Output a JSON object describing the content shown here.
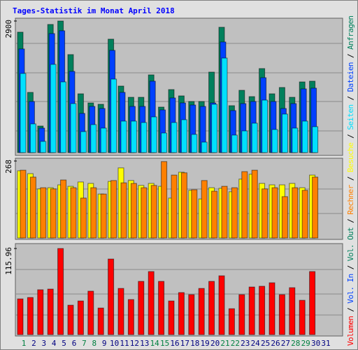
{
  "chart_data": [
    {
      "type": "bar",
      "title": "Tages-Statistik im Monat April 2018",
      "ylim": [
        0,
        2900
      ],
      "yticks": [
        2900
      ],
      "series": [
        {
          "name": "Anfragen",
          "color": "#00805c",
          "values": [
            2654,
            1327,
            586,
            2824,
            2900,
            2160,
            1296,
            1095,
            1065,
            2500,
            1466,
            1219,
            1219,
            1713,
            1003,
            1389,
            1250,
            1126,
            1126,
            1774,
            2762,
            1034,
            1373,
            1234,
            1852,
            1296,
            1435,
            1219,
            1558,
            1574,
            null
          ]
        },
        {
          "name": "Dateien",
          "color": "#0040ff",
          "values": [
            2284,
            1126,
            540,
            2623,
            2685,
            1790,
            864,
            1018,
            972,
            2253,
            1327,
            1018,
            1018,
            1574,
            941,
            1204,
            1095,
            1049,
            1018,
            1095,
            2438,
            926,
            1080,
            1126,
            1651,
            1126,
            972,
            1080,
            1404,
            1420,
            null
          ]
        },
        {
          "name": "Seiten",
          "color": "#00e0ff",
          "values": [
            1744,
            633,
            247,
            1944,
            1558,
            1080,
            463,
            617,
            540,
            1620,
            694,
            694,
            663,
            787,
            432,
            663,
            725,
            401,
            231,
            1065,
            2083,
            386,
            478,
            648,
            1157,
            509,
            849,
            540,
            694,
            571,
            null
          ]
        }
      ]
    },
    {
      "type": "bar",
      "ylim": [
        0,
        268
      ],
      "yticks": [
        268
      ],
      "series": [
        {
          "name": "Besuche",
          "color": "#ffff00",
          "values": [
            234,
            224,
            171,
            175,
            185,
            180,
            195,
            190,
            153,
            197,
            244,
            200,
            183,
            190,
            180,
            139,
            229,
            166,
            136,
            175,
            173,
            161,
            205,
            222,
            190,
            185,
            185,
            190,
            175,
            219,
            null
          ]
        },
        {
          "name": "Rechner",
          "color": "#ff8000",
          "values": [
            236,
            212,
            175,
            171,
            202,
            175,
            139,
            175,
            153,
            200,
            192,
            190,
            175,
            183,
            266,
            219,
            227,
            168,
            200,
            163,
            180,
            175,
            231,
            236,
            171,
            175,
            144,
            175,
            166,
            212,
            null
          ]
        }
      ]
    },
    {
      "type": "bar",
      "ylim": [
        0,
        115.96
      ],
      "yticks": [
        115.96
      ],
      "categories": [
        "1",
        "2",
        "3",
        "4",
        "5",
        "6",
        "7",
        "8",
        "9",
        "10",
        "11",
        "12",
        "13",
        "14",
        "15",
        "16",
        "17",
        "18",
        "19",
        "20",
        "21",
        "22",
        "23",
        "24",
        "25",
        "26",
        "27",
        "28",
        "29",
        "30",
        "31"
      ],
      "category_colors": [
        "#008040",
        "#000080",
        "#000080",
        "#000080",
        "#000080",
        "#000080",
        "#008040",
        "#008040",
        "#000080",
        "#000080",
        "#000080",
        "#000080",
        "#000080",
        "#008040",
        "#008040",
        "#000080",
        "#000080",
        "#000080",
        "#000080",
        "#000080",
        "#008040",
        "#008040",
        "#000080",
        "#000080",
        "#000080",
        "#000080",
        "#000080",
        "#008040",
        "#008040",
        "#000080",
        "#000080"
      ],
      "series": [
        {
          "name": "Volumen",
          "color": "#ff0000",
          "values": [
            48.1,
            50,
            60.4,
            61.3,
            115.96,
            39.6,
            45.3,
            58.5,
            35.8,
            101.8,
            62.2,
            47.2,
            71.7,
            84.9,
            71.7,
            45.3,
            56.6,
            53.8,
            62.2,
            71.7,
            79.2,
            34.9,
            53.8,
            64.1,
            65.1,
            69.8,
            53.8,
            63.2,
            46.2,
            84.9,
            null
          ]
        }
      ],
      "extra_legend": [
        {
          "name": "Vol. In",
          "color": "#0040ff"
        },
        {
          "name": "Vol. Out",
          "color": "#00805c"
        }
      ],
      "legend_separator": " / "
    }
  ]
}
